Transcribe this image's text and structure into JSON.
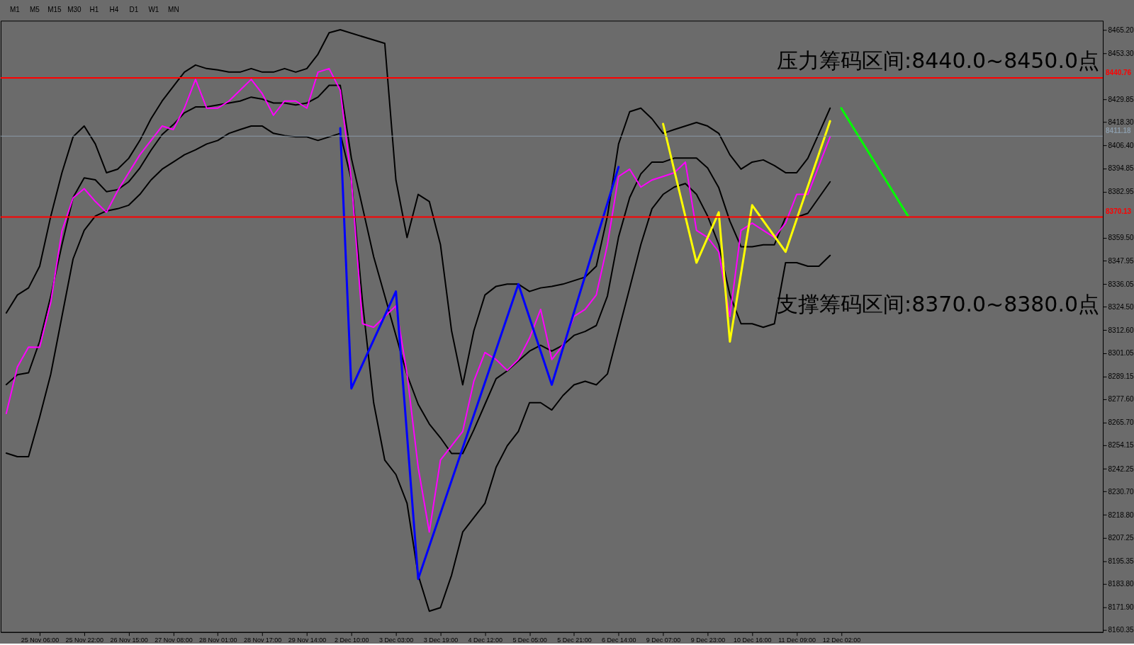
{
  "chart_data": {
    "type": "line",
    "categories": [
      null,
      null,
      null,
      "25 Nov 06:00",
      null,
      null,
      null,
      "25 Nov 22:00",
      null,
      null,
      null,
      "26 Nov 15:00",
      null,
      null,
      null,
      "27 Nov 08:00",
      null,
      null,
      null,
      "28 Nov 01:00",
      null,
      null,
      null,
      "28 Nov 17:00",
      null,
      null,
      null,
      "29 Nov 14:00",
      null,
      null,
      null,
      "2 Dec 10:00",
      null,
      null,
      null,
      "3 Dec 03:00",
      null,
      null,
      null,
      "3 Dec 19:00",
      null,
      null,
      null,
      "4 Dec 12:00",
      null,
      null,
      null,
      "5 Dec 05:00",
      null,
      null,
      null,
      "5 Dec 21:00",
      null,
      null,
      null,
      "6 Dec 14:00",
      null,
      null,
      null,
      "9 Dec 07:00",
      null,
      null,
      null,
      "9 Dec 23:00",
      null,
      null,
      null,
      "10 Dec 16:00",
      null,
      null,
      null,
      "11 Dec 09:00",
      null,
      null,
      null,
      "12 Dec 02:00",
      null,
      null,
      null,
      null,
      null,
      null,
      null,
      null,
      null,
      null,
      null,
      null,
      null,
      null,
      null,
      null,
      null,
      null,
      null,
      null,
      null,
      null,
      null
    ],
    "series": [
      {
        "color": "#000000",
        "values": [
          8321.4,
          8330.5,
          8334.1,
          8345.1,
          8370.6,
          8392.6,
          8410.8,
          8416.3,
          8407.2,
          8392.6,
          8394.4,
          8399.9,
          8409,
          8420,
          8429,
          8436.4,
          8443.7,
          8447.3,
          8445.5,
          8444.8,
          8443.7,
          8443.7,
          8445.5,
          8443.7,
          8443.7,
          8445.5,
          8443.7,
          8445.5,
          8452.8,
          8463.7,
          8465.2,
          null,
          null,
          null,
          8458.3,
          8388.9,
          8359.7,
          8381.6,
          8378,
          8356.1,
          8312.3,
          8284.9,
          8312.3,
          8330.5,
          8334.9,
          8336,
          8336,
          8332.3,
          8334.1,
          8334.9,
          8336,
          8337.8,
          8339.6,
          8345.1,
          8370.6,
          8407.2,
          8423.6,
          8425.4,
          8420,
          8412.6,
          8414.5,
          8416.3,
          8418.1,
          8416.3,
          8412.6,
          8401.7,
          8394.4,
          8398,
          8399.1,
          8396.2,
          8392.6,
          8392.6,
          8399.9,
          8412.6,
          8425.4,
          null,
          null,
          null,
          null,
          null,
          null,
          null,
          null,
          null,
          null,
          null,
          null,
          null,
          null,
          null,
          null,
          null,
          null,
          null,
          null,
          null,
          null,
          null,
          null
        ]
      },
      {
        "color": "#000000",
        "values": [
          8285,
          8290,
          8291,
          8307,
          8330,
          8356,
          8380,
          8390,
          8389,
          8383,
          8384,
          8388,
          8395,
          8404,
          8412,
          8417,
          8423,
          8426,
          8426,
          8427,
          8428,
          8429,
          8431,
          8430,
          8428,
          8428,
          8427,
          8428,
          8431,
          8437,
          8437,
          8400,
          8375,
          8350,
          8330,
          8310,
          8290,
          8275,
          8265,
          8258,
          8250,
          8250,
          8262,
          8275,
          8288,
          8292,
          8297,
          8302,
          8305,
          8302,
          8305,
          8310,
          8312,
          8315,
          8330,
          8360,
          8380,
          8392,
          8398,
          8398,
          8400,
          8400,
          8400,
          8395,
          8385,
          8368,
          8355,
          8355,
          8356,
          8356,
          8370,
          8370,
          8372,
          8380,
          8388,
          null,
          null,
          null,
          null,
          null,
          null,
          null,
          null,
          null,
          null,
          null,
          null,
          null,
          null,
          null,
          null,
          null,
          null,
          null,
          null,
          null,
          null,
          null,
          null
        ]
      },
      {
        "color": "#000000",
        "values": [
          8250.2,
          8248.4,
          8248.4,
          8268.5,
          8290.4,
          8319.6,
          8348.8,
          8363.3,
          8370.6,
          8373.2,
          8374.3,
          8376.1,
          8381.6,
          8388.9,
          8394.4,
          8398,
          8401.7,
          8404.2,
          8407.2,
          8409,
          8412.6,
          8414.5,
          8416.3,
          8416.3,
          8412.6,
          8411.5,
          8410.8,
          8410.8,
          8409,
          8410.8,
          8412.6,
          8388.9,
          8326.9,
          8275.8,
          8246.6,
          8239.3,
          8224.7,
          8188.2,
          8169.9,
          8171.7,
          8188.2,
          8210.1,
          8217.4,
          8224.7,
          8243,
          8253.9,
          8261.2,
          8275.8,
          8275.8,
          8272.1,
          8279.4,
          8284.9,
          8286.7,
          8284.9,
          8290.4,
          8312.3,
          8334.1,
          8356.1,
          8374.3,
          8381.6,
          8385.3,
          8387.1,
          8381.6,
          8370.6,
          8356.1,
          8330.5,
          8315.9,
          8315.9,
          8314.1,
          8315.9,
          8346.9,
          8346.9,
          8345.1,
          8345.1,
          8350.6,
          null,
          null,
          null,
          null,
          null,
          null,
          null,
          null,
          null,
          null,
          null,
          null,
          null,
          null,
          null,
          null,
          null,
          null,
          null,
          null,
          null,
          null,
          null,
          null
        ]
      },
      {
        "color": "#ff00ff",
        "values": [
          8270.3,
          8294,
          8304,
          8303.9,
          8326.9,
          8363,
          8379.8,
          8384.5,
          8378,
          8372.5,
          8383.4,
          8392.6,
          8401.7,
          8409,
          8416.3,
          8414.5,
          8425.4,
          8440,
          8425.4,
          8425.4,
          8429,
          8434.5,
          8440,
          8432.7,
          8421.8,
          8429,
          8429,
          8425.4,
          8443.7,
          8445.5,
          8434.5,
          8388.9,
          8315.9,
          8314.1,
          8319.6,
          8325,
          8290.4,
          8242.9,
          8210.1,
          8246.6,
          8253.9,
          8261.2,
          8286.7,
          8301.3,
          8297.7,
          8292.2,
          8297.7,
          8308.6,
          8323.2,
          8297.7,
          8305,
          8319.6,
          8323.2,
          8330.5,
          8356.1,
          8390.7,
          8394.4,
          8385.3,
          8388.9,
          8390.7,
          8392.6,
          8398,
          8363.3,
          8359.7,
          8352.4,
          8319.6,
          8363.3,
          8367,
          8363.3,
          8359.7,
          8367,
          8381.6,
          8381.6,
          8396.2,
          8410.8,
          null,
          null,
          null,
          null,
          null,
          null,
          null,
          null,
          null,
          null,
          null,
          null,
          null,
          null,
          null,
          null,
          null,
          null,
          null,
          null,
          null,
          null,
          null,
          null
        ]
      },
      {
        "color": "#0000ff",
        "values": [
          null,
          null,
          null,
          null,
          null,
          null,
          null,
          null,
          null,
          null,
          null,
          null,
          null,
          null,
          null,
          null,
          null,
          null,
          null,
          null,
          null,
          null,
          null,
          null,
          null,
          null,
          null,
          null,
          null,
          null,
          8415.2,
          8283,
          null,
          null,
          null,
          8332.3,
          null,
          8186.3,
          null,
          null,
          null,
          null,
          null,
          null,
          null,
          null,
          8336,
          null,
          null,
          8284.9,
          null,
          null,
          null,
          null,
          null,
          8395.5,
          null,
          null,
          null,
          null,
          null,
          null,
          null,
          null,
          null,
          null,
          null,
          null,
          null,
          null,
          null,
          null,
          null,
          null,
          null,
          null,
          null,
          null,
          null,
          null,
          null,
          null,
          null,
          null,
          null,
          null,
          null,
          null,
          null,
          null,
          null,
          null,
          null,
          null,
          null,
          null,
          null,
          null,
          null
        ]
      },
      {
        "color": "#ffff00",
        "values": [
          null,
          null,
          null,
          null,
          null,
          null,
          null,
          null,
          null,
          null,
          null,
          null,
          null,
          null,
          null,
          null,
          null,
          null,
          null,
          null,
          null,
          null,
          null,
          null,
          null,
          null,
          null,
          null,
          null,
          null,
          null,
          null,
          null,
          null,
          null,
          null,
          null,
          null,
          null,
          null,
          null,
          null,
          null,
          null,
          null,
          null,
          null,
          null,
          null,
          null,
          null,
          null,
          null,
          null,
          null,
          null,
          null,
          null,
          null,
          8417.4,
          null,
          null,
          8346.9,
          null,
          8372.5,
          8306.8,
          null,
          8376.1,
          null,
          null,
          8352.4,
          null,
          null,
          null,
          8418.8,
          null,
          null,
          null,
          null,
          null,
          null,
          null,
          null,
          null,
          null,
          null,
          null,
          null,
          null,
          null,
          null,
          null,
          null,
          null,
          null,
          null,
          null,
          null,
          null
        ]
      },
      {
        "color": "#00ff00",
        "values": [
          null,
          null,
          null,
          null,
          null,
          null,
          null,
          null,
          null,
          null,
          null,
          null,
          null,
          null,
          null,
          null,
          null,
          null,
          null,
          null,
          null,
          null,
          null,
          null,
          null,
          null,
          null,
          null,
          null,
          null,
          null,
          null,
          null,
          null,
          null,
          null,
          null,
          null,
          null,
          null,
          null,
          null,
          null,
          null,
          null,
          null,
          null,
          null,
          null,
          null,
          null,
          null,
          null,
          null,
          null,
          null,
          null,
          null,
          null,
          null,
          null,
          null,
          null,
          null,
          null,
          null,
          null,
          null,
          null,
          null,
          null,
          null,
          null,
          null,
          null,
          8425.4,
          null,
          null,
          null,
          null,
          null,
          8370.6,
          null,
          null,
          null,
          null,
          null,
          null,
          null,
          null,
          null,
          null,
          null,
          null,
          null,
          null,
          null,
          null,
          null
        ]
      }
    ],
    "ylim": [
      8159.3,
      8469.8
    ],
    "yticks": [
      {
        "value": 8465.2,
        "label": "8465.20"
      },
      {
        "value": 8453.3,
        "label": "8453.30"
      },
      {
        "value": 8429.85,
        "label": "8429.85"
      },
      {
        "value": 8418.3,
        "label": "8418.30"
      },
      {
        "value": 8406.4,
        "label": "8406.40"
      },
      {
        "value": 8394.85,
        "label": "8394.85"
      },
      {
        "value": 8382.95,
        "label": "8382.95"
      },
      {
        "value": 8359.5,
        "label": "8359.50"
      },
      {
        "value": 8347.95,
        "label": "8347.95"
      },
      {
        "value": 8336.05,
        "label": "8336.05"
      },
      {
        "value": 8324.5,
        "label": "8324.50"
      },
      {
        "value": 8312.6,
        "label": "8312.60"
      },
      {
        "value": 8301.05,
        "label": "8301.05"
      },
      {
        "value": 8289.15,
        "label": "8289.15"
      },
      {
        "value": 8277.6,
        "label": "8277.60"
      },
      {
        "value": 8265.7,
        "label": "8265.70"
      },
      {
        "value": 8254.15,
        "label": "8254.15"
      },
      {
        "value": 8242.25,
        "label": "8242.25"
      },
      {
        "value": 8230.7,
        "label": "8230.70"
      },
      {
        "value": 8218.8,
        "label": "8218.80"
      },
      {
        "value": 8207.25,
        "label": "8207.25"
      },
      {
        "value": 8195.35,
        "label": "8195.35"
      },
      {
        "value": 8183.8,
        "label": "8183.80"
      },
      {
        "value": 8171.9,
        "label": "8171.90"
      },
      {
        "value": 8160.35,
        "label": "8160.35"
      }
    ],
    "ref_lines": [
      {
        "axis": "y",
        "value": 8440.76,
        "label": "8440.76",
        "color": "#ff0000"
      },
      {
        "axis": "y",
        "value": 8411.18,
        "label": "8411.18",
        "color": "#8a9aa8"
      },
      {
        "axis": "y",
        "value": 8370.13,
        "label": "8370.13",
        "color": "#ff0000"
      }
    ],
    "annotations": [
      "压力筹码区间:8440.0~8450.0点",
      "支撑筹码区间:8370.0~8380.0点",
      "M1",
      "M5",
      "M15",
      "M30",
      "H1",
      "H4",
      "D1",
      "W1",
      "MN"
    ],
    "grid": false
  }
}
